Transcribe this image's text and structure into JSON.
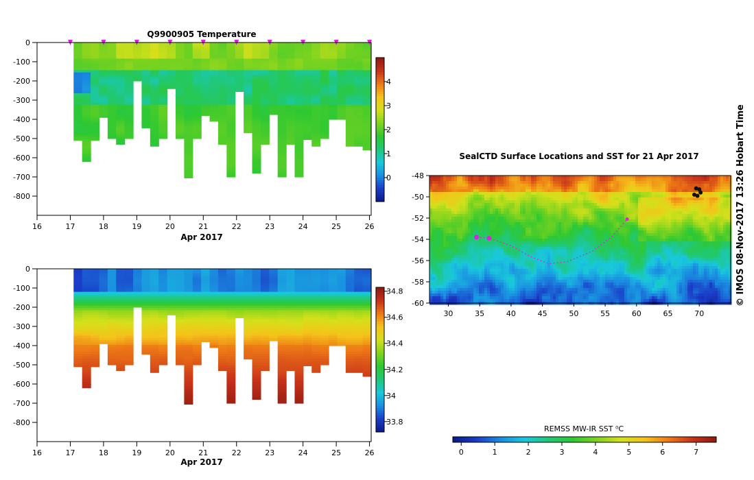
{
  "chart_data": [
    {
      "type": "heatmap",
      "panel": "temperature",
      "title": "Q9900905  Temperature",
      "xlabel": "Apr 2017",
      "x_ticks": [
        "16",
        "17",
        "18",
        "19",
        "20",
        "21",
        "22",
        "23",
        "24",
        "25",
        "26"
      ],
      "xlim": [
        16,
        26.05
      ],
      "y_ticks": [
        "0",
        "-100",
        "-200",
        "-300",
        "-400",
        "-500",
        "-600",
        "-700",
        "-800"
      ],
      "ylim": [
        -900,
        0
      ],
      "profile_start": 17.1,
      "profile_end": 26.05,
      "profile_bottoms": [
        -510,
        -620,
        -510,
        -390,
        -500,
        -530,
        -500,
        -200,
        -445,
        -540,
        -500,
        -240,
        -500,
        -705,
        -500,
        -380,
        -410,
        -530,
        -700,
        -255,
        -470,
        -680,
        -530,
        -375,
        -700,
        -530,
        -700,
        -505,
        -540,
        -500,
        -400,
        -400,
        -540,
        -540,
        -560
      ],
      "surface_markers": [
        17,
        18,
        19,
        20,
        21,
        22,
        23,
        24,
        25,
        26
      ],
      "colorbar_ticks": [
        "0",
        "1",
        "2",
        "3",
        "4"
      ],
      "colorbar_range": [
        -1,
        5
      ],
      "colormap": [
        "#0b1a85",
        "#1a3cc8",
        "#1a8ee0",
        "#19c8dc",
        "#20c878",
        "#2ec832",
        "#7ed31e",
        "#d4e01b",
        "#f4c41a",
        "#ee7a16",
        "#c8321a",
        "#8c1a10"
      ]
    },
    {
      "type": "heatmap",
      "panel": "salinity",
      "title": "",
      "xlabel": "Apr 2017",
      "x_ticks": [
        "16",
        "17",
        "18",
        "19",
        "20",
        "21",
        "22",
        "23",
        "24",
        "25",
        "26"
      ],
      "xlim": [
        16,
        26.05
      ],
      "y_ticks": [
        "0",
        "-100",
        "-200",
        "-300",
        "-400",
        "-500",
        "-600",
        "-700",
        "-800"
      ],
      "ylim": [
        -900,
        0
      ],
      "colorbar_ticks": [
        "33.8",
        "34",
        "34.2",
        "34.4",
        "34.6",
        "34.8"
      ],
      "colorbar_range": [
        33.72,
        34.83
      ],
      "colormap": [
        "#0b1a85",
        "#1a3cc8",
        "#1a8ee0",
        "#19c8dc",
        "#20c878",
        "#2ec832",
        "#7ed31e",
        "#d4e01b",
        "#f4c41a",
        "#ee7a16",
        "#c8321a",
        "#8c1a10"
      ]
    },
    {
      "type": "heatmap",
      "panel": "sst-map",
      "title": "SealCTD Surface Locations and SST for 21 Apr 2017",
      "x_ticks": [
        "30",
        "35",
        "40",
        "45",
        "50",
        "55",
        "60",
        "65",
        "70"
      ],
      "xlim": [
        27,
        75
      ],
      "y_ticks": [
        "-48",
        "-50",
        "-52",
        "-54",
        "-56",
        "-58",
        "-60"
      ],
      "ylim": [
        -60,
        -48
      ],
      "track": [
        [
          34.5,
          -53.8
        ],
        [
          36.5,
          -53.9
        ],
        [
          40,
          -54.6
        ],
        [
          43,
          -55.6
        ],
        [
          46,
          -56.3
        ],
        [
          49,
          -56.1
        ],
        [
          53,
          -55.1
        ],
        [
          56,
          -53.8
        ],
        [
          58.5,
          -52.1
        ]
      ],
      "colorbar_label": "REMSS MW-IR SST ⁰C",
      "colorbar_ticks": [
        "0",
        "1",
        "2",
        "3",
        "4",
        "5",
        "6",
        "7"
      ],
      "colorbar_range": [
        -0.25,
        7.6
      ],
      "colormap": [
        "#0b1a85",
        "#1a3cc8",
        "#1a8ee0",
        "#19c8dc",
        "#20c878",
        "#2ec832",
        "#7ed31e",
        "#d4e01b",
        "#f4c41a",
        "#ee7a16",
        "#c8321a",
        "#8c1a10"
      ]
    }
  ],
  "side_label": "© IMOS 08-Nov-2017 13:26 Hobart Time",
  "colors": {
    "marker": "#e020e0",
    "track": "#e020e0",
    "axis": "#000000"
  }
}
